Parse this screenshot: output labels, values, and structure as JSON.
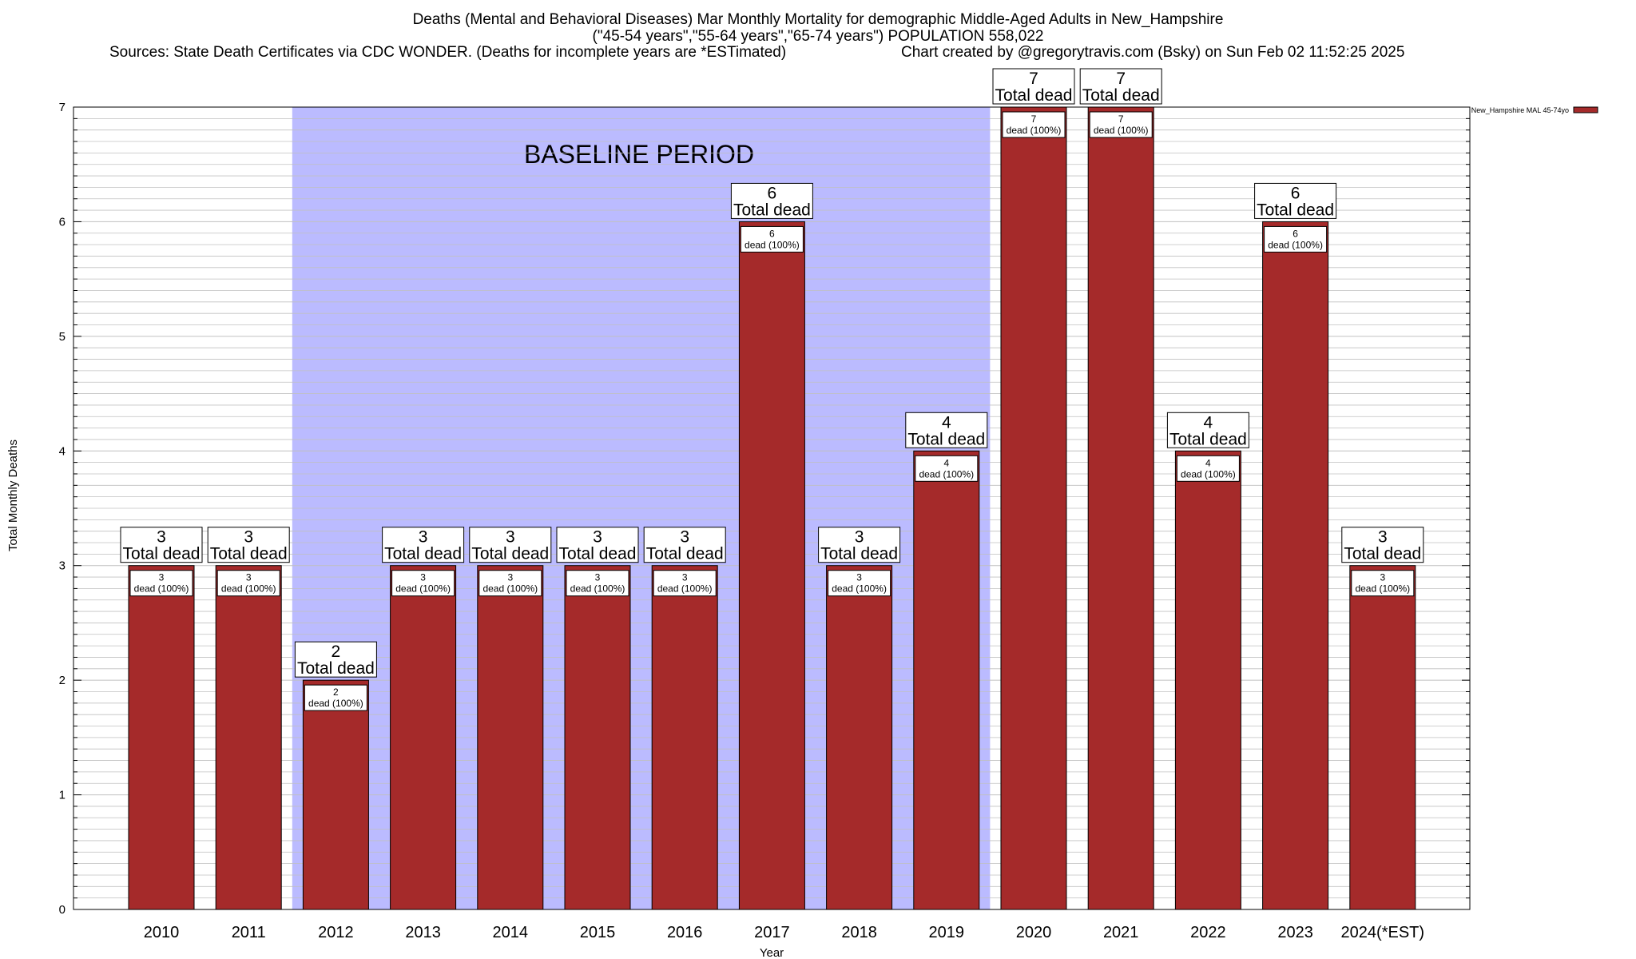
{
  "header": {
    "title_line1": "Deaths (Mental and Behavioral Diseases) Mar Monthly Mortality for demographic Middle-Aged Adults in New_Hampshire",
    "title_line2": "(\"45-54 years\",\"55-64 years\",\"65-74 years\") POPULATION 558,022",
    "sources": "Sources: State Death Certificates via CDC WONDER. (Deaths for incomplete years are *ESTimated)",
    "credit": "Chart created by @gregorytravis.com (Bsky) on Sun Feb 02 11:52:25 2025"
  },
  "colors": {
    "bar": "#a52a2a",
    "baseline_band": "#bbbbff",
    "grid": "#c0c0c0"
  },
  "chart_data": {
    "type": "bar",
    "categories": [
      "2010",
      "2011",
      "2012",
      "2013",
      "2014",
      "2015",
      "2016",
      "2017",
      "2018",
      "2019",
      "2020",
      "2021",
      "2022",
      "2023",
      "2024(*EST)"
    ],
    "series": [
      {
        "name": "New_Hampshire MAL 45-74yo",
        "values": [
          3,
          3,
          2,
          3,
          3,
          3,
          3,
          6,
          3,
          4,
          7,
          7,
          4,
          6,
          3
        ]
      }
    ],
    "xlabel": "Year",
    "ylabel": "Total Monthly Deaths",
    "ylim": [
      0,
      7
    ],
    "yticks": [
      0,
      1,
      2,
      3,
      4,
      5,
      6,
      7
    ],
    "grid": true,
    "legend_position": "top-right",
    "total_label": "Total dead",
    "inner_label": "dead (100%)",
    "annotation": {
      "text": "BASELINE PERIOD",
      "start_category": "2012",
      "end_category": "2019"
    }
  }
}
